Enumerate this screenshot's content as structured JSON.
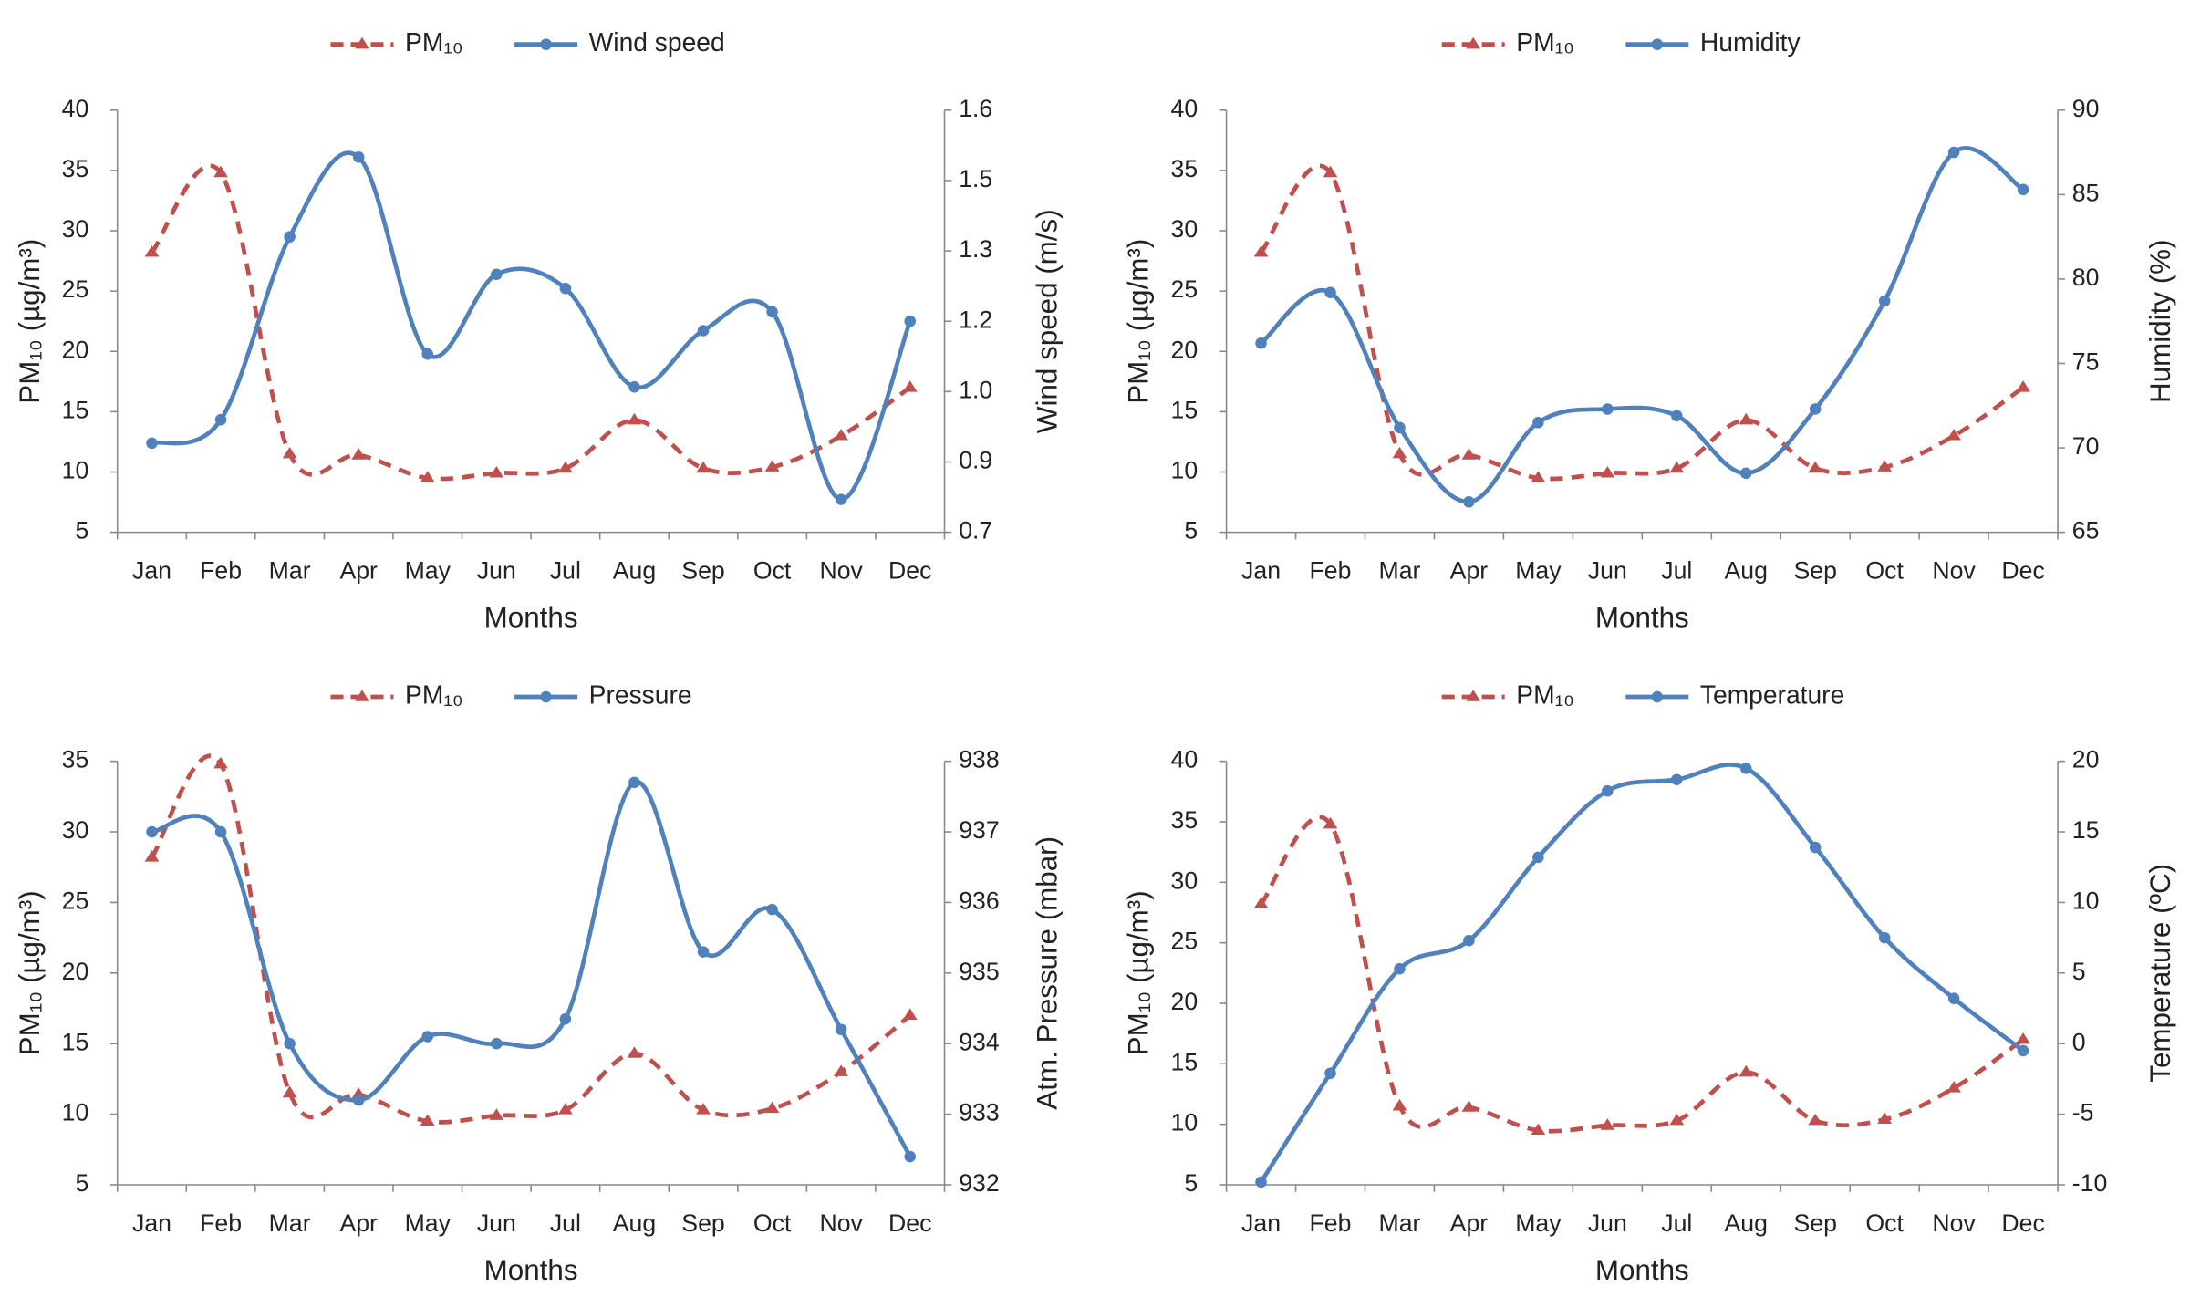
{
  "chart_data": [
    {
      "type": "line",
      "categories": [
        "Jan",
        "Feb",
        "Mar",
        "Apr",
        "May",
        "Jun",
        "Jul",
        "Aug",
        "Sep",
        "Oct",
        "Nov",
        "Dec"
      ],
      "x_label": "Months",
      "y_label": "PM₁₀ (µg/m³)",
      "y2_label": "Wind speed (m/s)",
      "ylim": [
        5,
        40
      ],
      "yticks": [
        5,
        10,
        15,
        20,
        25,
        30,
        35,
        40
      ],
      "y2lim": [
        0.7,
        1.6
      ],
      "y2ticks": [
        0.7,
        {
          "value": 0.85,
          "label": "0.9"
        },
        "1.0",
        {
          "value": 1.15,
          "label": "1.2"
        },
        1.3,
        {
          "value": 1.45,
          "label": "1.5"
        },
        1.6
      ],
      "series": [
        {
          "name": "PM₁₀",
          "color": "#c0504d",
          "values": [
            28.2,
            34.8,
            11.5,
            11.4,
            9.5,
            9.9,
            10.3,
            14.3,
            10.3,
            10.4,
            13,
            17
          ]
        },
        {
          "name": "Wind speed",
          "color": "#4f81bd",
          "axis": "y2",
          "values": [
            0.89,
            0.94,
            1.33,
            1.5,
            1.08,
            1.25,
            1.22,
            1.01,
            1.13,
            1.17,
            0.77,
            1.15
          ]
        }
      ]
    },
    {
      "type": "line",
      "categories": [
        "Jan",
        "Feb",
        "Mar",
        "Apr",
        "May",
        "Jun",
        "Jul",
        "Aug",
        "Sep",
        "Oct",
        "Nov",
        "Dec"
      ],
      "x_label": "Months",
      "y_label": "PM₁₀ (µg/m³)",
      "y2_label": "Humidity (%)",
      "ylim": [
        5,
        40
      ],
      "yticks": [
        5,
        10,
        15,
        20,
        25,
        30,
        35,
        40
      ],
      "y2lim": [
        65,
        90
      ],
      "y2ticks": [
        65,
        70,
        75,
        80,
        85,
        90
      ],
      "series": [
        {
          "name": "PM₁₀",
          "color": "#c0504d",
          "values": [
            28.2,
            34.8,
            11.5,
            11.4,
            9.5,
            9.9,
            10.3,
            14.3,
            10.3,
            10.4,
            13,
            17
          ]
        },
        {
          "name": "Humidity",
          "color": "#4f81bd",
          "axis": "y2",
          "values": [
            76.2,
            79.2,
            71.2,
            66.8,
            71.5,
            72.3,
            71.9,
            68.5,
            72.3,
            78.7,
            87.5,
            85.3
          ]
        }
      ]
    },
    {
      "type": "line",
      "categories": [
        "Jan",
        "Feb",
        "Mar",
        "Apr",
        "May",
        "Jun",
        "Jul",
        "Aug",
        "Sep",
        "Oct",
        "Nov",
        "Dec"
      ],
      "x_label": "Months",
      "y_label": "PM₁₀ (µg/m³)",
      "y2_label": "Atm. Pressure (mbar)",
      "ylim": [
        5,
        35
      ],
      "yticks": [
        5,
        10,
        15,
        20,
        25,
        30,
        35
      ],
      "y2lim": [
        932,
        938
      ],
      "y2ticks": [
        932,
        933,
        934,
        935,
        936,
        937,
        938
      ],
      "series": [
        {
          "name": "PM₁₀",
          "color": "#c0504d",
          "values": [
            28.2,
            34.8,
            11.5,
            11.4,
            9.5,
            9.9,
            10.3,
            14.3,
            10.3,
            10.4,
            13,
            17
          ]
        },
        {
          "name": "Pressure",
          "color": "#4f81bd",
          "axis": "y2",
          "values": [
            937.0,
            937.0,
            934.0,
            933.2,
            934.1,
            934.0,
            934.35,
            937.7,
            935.3,
            935.9,
            934.2,
            932.4
          ]
        }
      ]
    },
    {
      "type": "line",
      "categories": [
        "Jan",
        "Feb",
        "Mar",
        "Apr",
        "May",
        "Jun",
        "Jul",
        "Aug",
        "Sep",
        "Oct",
        "Nov",
        "Dec"
      ],
      "x_label": "Months",
      "y_label": "PM₁₀ (µg/m³)",
      "y2_label": "Temperature (ºC)",
      "ylim": [
        5,
        40
      ],
      "yticks": [
        5,
        10,
        15,
        20,
        25,
        30,
        35,
        40
      ],
      "y2lim": [
        -10,
        20
      ],
      "y2ticks": [
        -10,
        -5,
        0,
        5,
        10,
        15,
        20
      ],
      "series": [
        {
          "name": "PM₁₀",
          "color": "#c0504d",
          "values": [
            28.2,
            34.8,
            11.5,
            11.4,
            9.5,
            9.9,
            10.3,
            14.3,
            10.3,
            10.4,
            13,
            17
          ]
        },
        {
          "name": "Temperature",
          "color": "#4f81bd",
          "axis": "y2",
          "values": [
            -9.8,
            -2.1,
            5.3,
            7.3,
            13.2,
            17.9,
            18.7,
            19.5,
            13.9,
            7.5,
            3.2,
            -0.5
          ]
        }
      ]
    }
  ]
}
